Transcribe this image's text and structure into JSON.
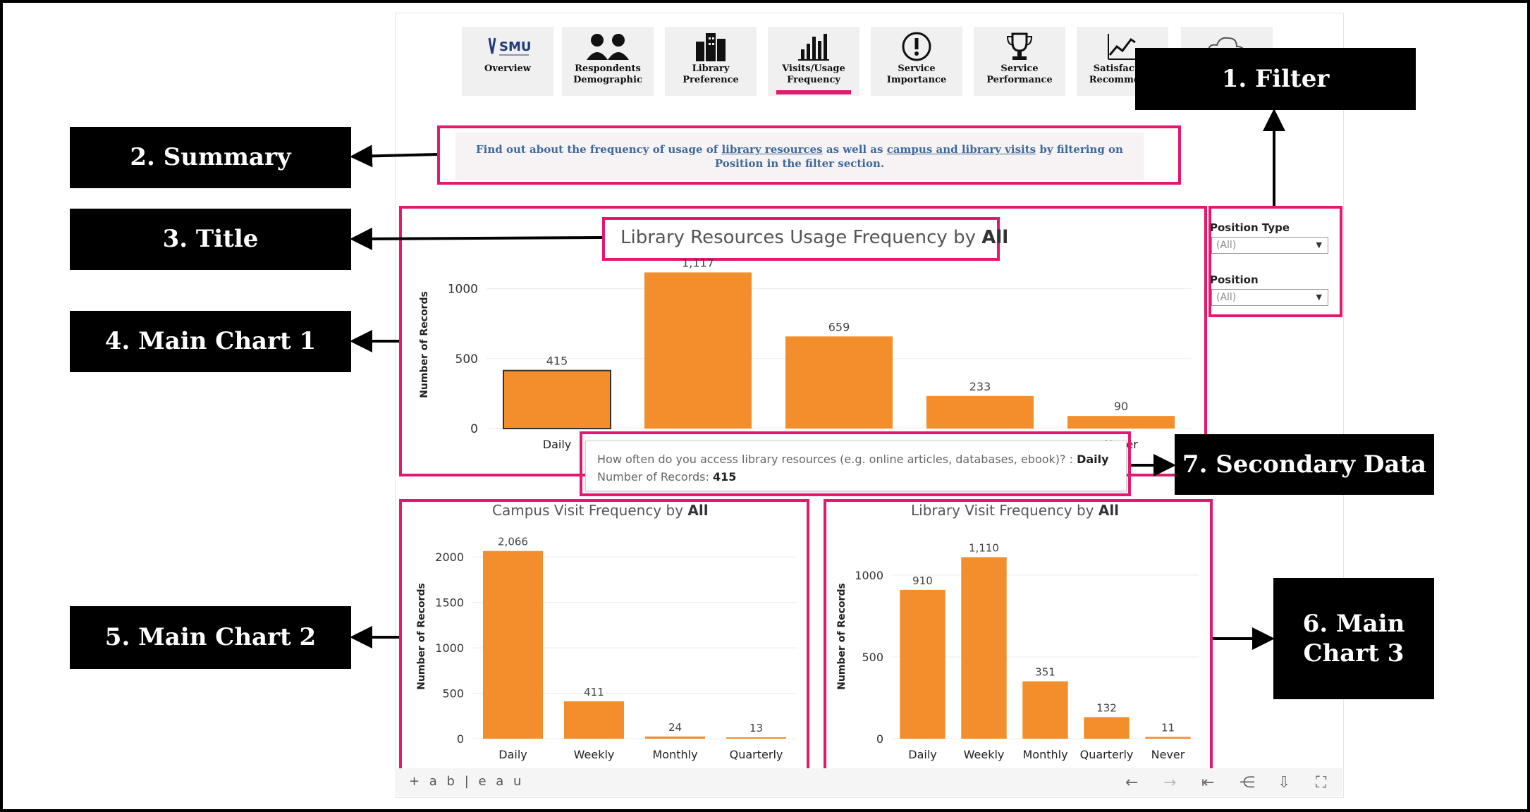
{
  "nav": {
    "items": [
      {
        "label": "Overview",
        "icon": "smu-logo-icon",
        "active": false
      },
      {
        "label": "Respondents Demographic",
        "icon": "people-icon",
        "active": false
      },
      {
        "label": "Library Preference",
        "icon": "building-icon",
        "active": false
      },
      {
        "label": "Visits/Usage Frequency",
        "icon": "bar-chart-icon",
        "active": true
      },
      {
        "label": "Service Importance",
        "icon": "exclamation-icon",
        "active": false
      },
      {
        "label": "Service Performance",
        "icon": "trophy-icon",
        "active": false
      },
      {
        "label": "Satisfacti... Recommen...",
        "icon": "trend-icon",
        "active": false
      },
      {
        "label": "",
        "icon": "cloud-icon",
        "active": false
      }
    ],
    "smu_text": "SMU"
  },
  "summary": {
    "pre": "Find out about the frequency of usage of ",
    "link1": "library resources",
    "mid": " as well as ",
    "link2": "campus and library visits",
    "post": " by filtering on Position in the filter section."
  },
  "filters": {
    "position_type": {
      "label": "Position Type",
      "value": "(All)"
    },
    "position": {
      "label": "Position",
      "value": "(All)"
    }
  },
  "tooltip": {
    "question": "How often do you access library resources (e.g. online articles, databases, ebook)? : ",
    "answer": "Daily",
    "records_label": "Number of Records: ",
    "records_value": "415"
  },
  "annotations": {
    "filter": "1. Filter",
    "summary": "2. Summary",
    "title": "3. Title",
    "chart1": "4. Main Chart 1",
    "chart2": "5. Main Chart 2",
    "chart3_line1": "6. Main",
    "chart3_line2": "Chart 3",
    "secondary": "7. Secondary Data"
  },
  "colors": {
    "bar": "#f28e2b",
    "highlight": "#e6176e",
    "summary_text": "#3d6a9a"
  },
  "footer": {
    "logo": "+ a b | e a u"
  },
  "chart_data": [
    {
      "type": "bar",
      "title": "Library Resources Usage Frequency by ",
      "title_bold": "All",
      "ylabel": "Number of Records",
      "categories": [
        "Daily",
        "",
        "",
        "",
        "Never"
      ],
      "values": [
        415,
        1117,
        659,
        233,
        90
      ],
      "value_labels": [
        "415",
        "1,117",
        "659",
        "233",
        "90"
      ],
      "yticks": [
        0,
        500,
        1000
      ],
      "ylim": [
        0,
        1200
      ],
      "selected_index": 0
    },
    {
      "type": "bar",
      "title": "Campus Visit Frequency by ",
      "title_bold": "All",
      "ylabel": "Number of Records",
      "categories": [
        "Daily",
        "Weekly",
        "Monthly",
        "Quarterly"
      ],
      "values": [
        2066,
        411,
        24,
        13
      ],
      "value_labels": [
        "2,066",
        "411",
        "24",
        "13"
      ],
      "yticks": [
        0,
        500,
        1000,
        1500,
        2000
      ],
      "ylim": [
        0,
        2250
      ]
    },
    {
      "type": "bar",
      "title": "Library Visit Frequency by ",
      "title_bold": "All",
      "ylabel": "Number of Records",
      "categories": [
        "Daily",
        "Weekly",
        "Monthly",
        "Quarterly",
        "Never"
      ],
      "values": [
        910,
        1110,
        351,
        132,
        11
      ],
      "value_labels": [
        "910",
        "1,110",
        "351",
        "132",
        "11"
      ],
      "yticks": [
        0,
        500,
        1000
      ],
      "ylim": [
        0,
        1250
      ]
    }
  ]
}
